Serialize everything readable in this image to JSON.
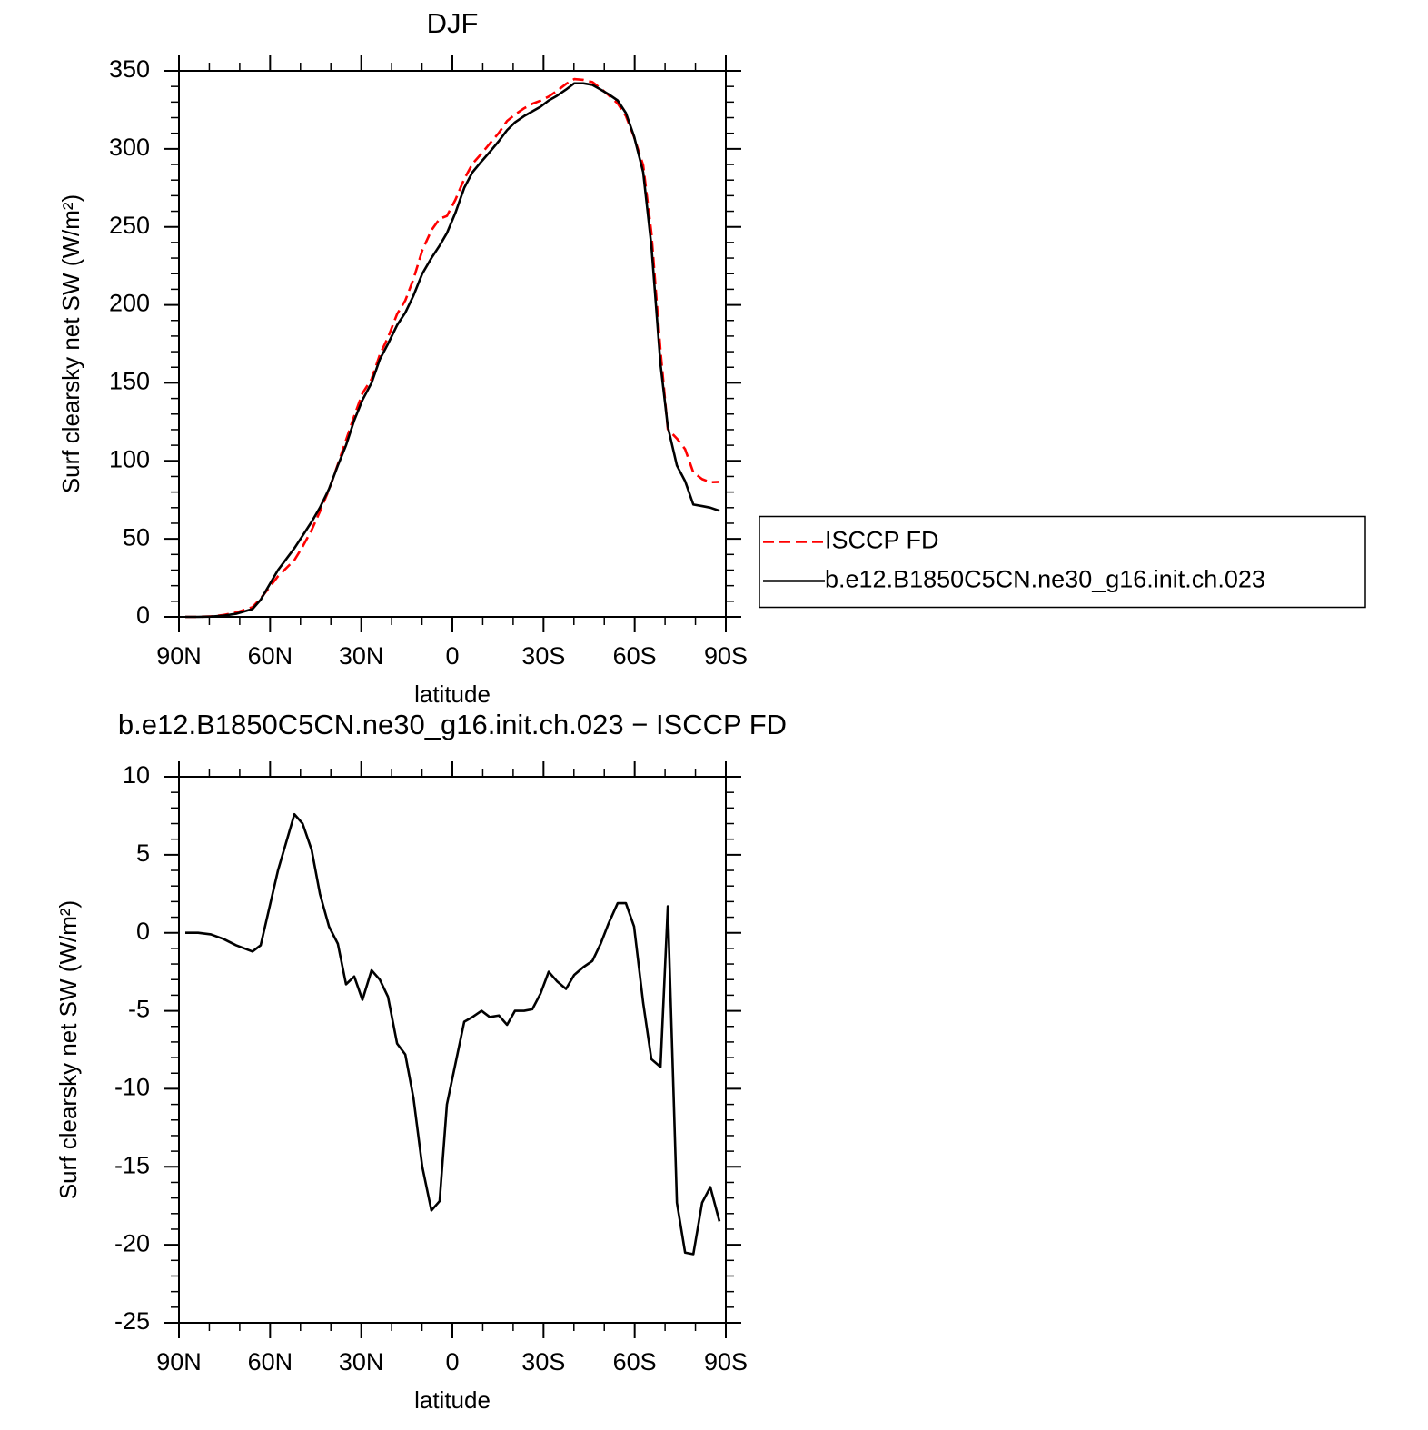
{
  "chart_data": [
    {
      "type": "line",
      "title": "DJF",
      "xlabel": "latitude",
      "ylabel": "Surf clearsky net SW (W/m²)",
      "x": [
        87.9,
        83.7,
        79.5,
        75.3,
        71.2,
        65.8,
        63.1,
        57.4,
        52.0,
        49.3,
        46.3,
        43.6,
        40.6,
        37.7,
        35.0,
        32.3,
        29.6,
        26.6,
        23.9,
        21.2,
        18.2,
        15.5,
        12.8,
        9.9,
        6.9,
        4.2,
        1.8,
        -1.0,
        -3.9,
        -6.6,
        -9.6,
        -12.3,
        -15.3,
        -18.0,
        -20.6,
        -23.6,
        -26.3,
        -29.0,
        -31.7,
        -34.4,
        -37.4,
        -40.1,
        -43.1,
        -46.1,
        -48.8,
        -51.4,
        -54.4,
        -57.1,
        -59.8,
        -62.8,
        -65.5,
        -68.5,
        -70.9,
        -73.9,
        -76.6,
        -79.3,
        -82.2,
        -84.9,
        -87.9
      ],
      "series": [
        {
          "name": "ISCCP FD",
          "color": "#ff0000",
          "linestyle": "dashed",
          "values": [
            0,
            0,
            0.3,
            1.2,
            2.8,
            6.2,
            11.8,
            26,
            36.4,
            45,
            55.7,
            67.5,
            81.6,
            97.7,
            113.3,
            128.8,
            143.3,
            152.4,
            168,
            179.1,
            194.1,
            202.8,
            216.6,
            235,
            247.8,
            255.2,
            257,
            267.4,
            280.7,
            290.4,
            297,
            303.4,
            310.3,
            317.9,
            322,
            326,
            328.9,
            330.9,
            333.5,
            337.1,
            341.6,
            344.7,
            344.2,
            342.8,
            338.7,
            334.4,
            329.1,
            321.1,
            307.6,
            289.5,
            246.1,
            170.6,
            120.3,
            114.3,
            107.5,
            92.6,
            88.3,
            86.3,
            86.5
          ]
        },
        {
          "name": "b.e12.B1850C5CN.ne30_g16.init.ch.023",
          "color": "#000000",
          "linestyle": "solid",
          "values": [
            0,
            0,
            0.2,
            0.8,
            2,
            5,
            11,
            30,
            44,
            52,
            61,
            70,
            82,
            97,
            110,
            126,
            139,
            150,
            165,
            175,
            187,
            195,
            206,
            220,
            230,
            238,
            246,
            259,
            275,
            285,
            292,
            298,
            305,
            312,
            317,
            321,
            324,
            327,
            331,
            334,
            338,
            342,
            342,
            341,
            338,
            335,
            331,
            323,
            308,
            285,
            238,
            162,
            122,
            97,
            87,
            72,
            71,
            70,
            68
          ]
        }
      ],
      "xlim": [
        90,
        -90
      ],
      "xticks": [
        {
          "value": 90,
          "label": "90N"
        },
        {
          "value": 60,
          "label": "60N"
        },
        {
          "value": 30,
          "label": "30N"
        },
        0,
        {
          "value": -30,
          "label": "30S"
        },
        {
          "value": -60,
          "label": "60S"
        },
        {
          "value": -90,
          "label": "90S"
        }
      ],
      "ylim": [
        0,
        350
      ],
      "yticks": [
        0,
        50,
        100,
        150,
        200,
        250,
        300,
        350
      ],
      "legend": "right"
    },
    {
      "type": "line",
      "title": "b.e12.B1850C5CN.ne30_g16.init.ch.023 − ISCCP FD",
      "xlabel": "latitude",
      "ylabel": "Surf clearsky net SW (W/m²)",
      "x": [
        87.9,
        83.7,
        79.5,
        75.3,
        71.2,
        65.8,
        63.1,
        57.4,
        52.0,
        49.3,
        46.3,
        43.6,
        40.6,
        37.7,
        35.0,
        32.3,
        29.6,
        26.6,
        23.9,
        21.2,
        18.2,
        15.5,
        12.8,
        9.9,
        6.9,
        4.2,
        1.8,
        -1.0,
        -3.9,
        -6.6,
        -9.6,
        -12.3,
        -15.3,
        -18.0,
        -20.6,
        -23.6,
        -26.3,
        -29.0,
        -31.7,
        -34.4,
        -37.4,
        -40.1,
        -43.1,
        -46.1,
        -48.8,
        -51.4,
        -54.4,
        -57.1,
        -59.8,
        -62.8,
        -65.5,
        -68.5,
        -70.9,
        -73.9,
        -76.6,
        -79.3,
        -82.2,
        -84.9,
        -87.9
      ],
      "values": [
        0,
        0,
        -0.1,
        -0.4,
        -0.8,
        -1.2,
        -0.8,
        4.0,
        7.6,
        7.0,
        5.3,
        2.5,
        0.4,
        -0.7,
        -3.3,
        -2.8,
        -4.3,
        -2.4,
        -3.0,
        -4.1,
        -7.1,
        -7.8,
        -10.6,
        -15.0,
        -17.8,
        -17.2,
        -11.0,
        -8.4,
        -5.7,
        -5.4,
        -5.0,
        -5.4,
        -5.3,
        -5.9,
        -5.0,
        -5.0,
        -4.9,
        -3.9,
        -2.5,
        -3.1,
        -3.6,
        -2.7,
        -2.2,
        -1.8,
        -0.7,
        0.6,
        1.9,
        1.9,
        0.4,
        -4.5,
        -8.1,
        -8.6,
        1.7,
        -17.3,
        -20.5,
        -20.6,
        -17.3,
        -16.3,
        -18.5
      ],
      "color": "#000000",
      "linestyle": "solid",
      "xlim": [
        90,
        -90
      ],
      "xticks": [
        {
          "value": 90,
          "label": "90N"
        },
        {
          "value": 60,
          "label": "60N"
        },
        {
          "value": 30,
          "label": "30N"
        },
        0,
        {
          "value": -30,
          "label": "30S"
        },
        {
          "value": -60,
          "label": "60S"
        },
        {
          "value": -90,
          "label": "90S"
        }
      ],
      "ylim": [
        -25,
        10
      ],
      "yticks": [
        -25,
        -20,
        -15,
        -10,
        -5,
        0,
        5,
        10
      ]
    }
  ]
}
